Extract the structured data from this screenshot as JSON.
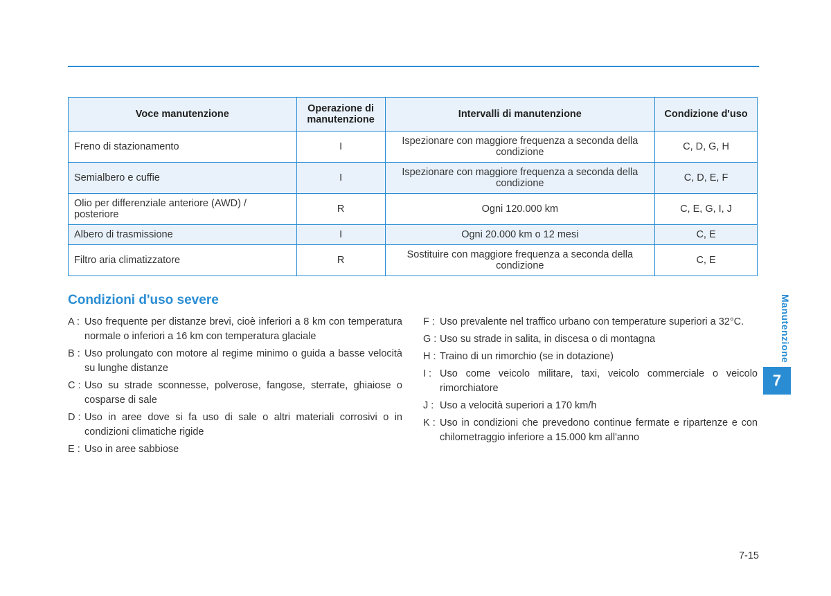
{
  "colors": {
    "accent": "#2a8dd4",
    "header_bg": "#e9f2fa",
    "border": "#2a8dd4",
    "text": "#333333",
    "white": "#ffffff"
  },
  "table": {
    "headers": {
      "item": "Voce manutenzione",
      "operation": "Operazione di manutenzione",
      "interval": "Intervalli di manutenzione",
      "condition": "Condizione d'uso"
    },
    "rows": [
      {
        "item": "Freno di stazionamento",
        "op": "I",
        "interval": "Ispezionare con maggiore frequenza a seconda della condizione",
        "cond": "C, D, G, H"
      },
      {
        "item": "Semialbero e cuffie",
        "op": "I",
        "interval": "Ispezionare con maggiore frequenza a seconda della condizione",
        "cond": "C, D, E, F"
      },
      {
        "item": "Olio per differenziale anteriore (AWD) / posteriore",
        "op": "R",
        "interval": "Ogni 120.000 km",
        "cond": "C, E, G, I, J"
      },
      {
        "item": "Albero di trasmissione",
        "op": "I",
        "interval": "Ogni 20.000 km o 12 mesi",
        "cond": "C, E"
      },
      {
        "item": "Filtro aria climatizzatore",
        "op": "R",
        "interval": "Sostituire con maggiore frequenza a seconda della condizione",
        "cond": "C, E"
      }
    ]
  },
  "section_heading": "Condizioni d'uso severe",
  "conditions": {
    "left": [
      {
        "key": "A :",
        "desc": "Uso frequente per distanze brevi, cioè inferiori a 8 km con temperatura normale o inferiori a 16 km con temperatura glaciale"
      },
      {
        "key": "B :",
        "desc": "Uso prolungato con motore al regime minimo o guida a basse velocità su lunghe distanze"
      },
      {
        "key": "C :",
        "desc": "Uso su strade sconnesse, polverose, fangose, sterrate, ghiaiose o cosparse di sale"
      },
      {
        "key": "D :",
        "desc": "Uso in aree dove si fa uso di sale o altri materiali corrosivi o in condizioni climatiche rigide"
      },
      {
        "key": "E :",
        "desc": "Uso in aree sabbiose"
      }
    ],
    "right": [
      {
        "key": "F :",
        "desc": "Uso prevalente nel traffico urbano con temperature superiori a 32°C."
      },
      {
        "key": "G :",
        "desc": "Uso su strade in salita, in discesa o di montagna"
      },
      {
        "key": "H :",
        "desc": "Traino di un rimorchio (se in dotazione)"
      },
      {
        "key": "I  :",
        "desc": "Uso come veicolo militare, taxi, veicolo commerciale o veicolo rimorchiatore"
      },
      {
        "key": "J :",
        "desc": "Uso a velocità superiori a 170 km/h"
      },
      {
        "key": "K :",
        "desc": "Uso in condizioni che prevedono continue fermate e ripartenze e con chilometraggio inferiore a 15.000 km all'anno"
      }
    ]
  },
  "side_tab": {
    "label": "Manutenzione",
    "number": "7"
  },
  "page_number": "7-15"
}
